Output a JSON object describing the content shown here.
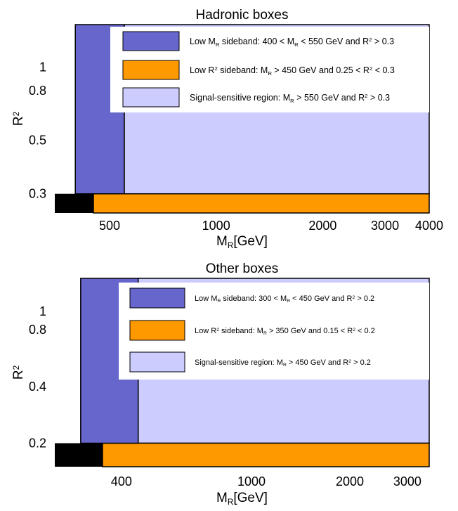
{
  "chart_data": [
    {
      "type": "area",
      "title": "Hadronic boxes",
      "xlabel": "M_R[GeV]",
      "ylabel": "R^2",
      "xscale": "log",
      "yscale": "log",
      "xlim": [
        350,
        4000
      ],
      "ylim": [
        0.25,
        1.5
      ],
      "xticks": [
        500,
        1000,
        2000,
        3000,
        4000
      ],
      "xtick_labels": [
        "500",
        "1000",
        "2000",
        "3000",
        "4000"
      ],
      "yticks": [
        0.3,
        0.5,
        0.8,
        1
      ],
      "ytick_labels": [
        "0.3",
        "0.5",
        "0.8",
        "1"
      ],
      "legend_position": "top-right",
      "colors": {
        "low_mr_sideband": "#6666cc",
        "low_r2_sideband": "#ff9900",
        "signal_region": "#ccccff",
        "excluded": "#000000"
      },
      "regions": [
        {
          "key": "low_mr_sideband",
          "name": "Low M_R sideband: 400 < M_R < 550 GeV and R^2 > 0.3",
          "mr": [
            400,
            550
          ],
          "r2": [
            0.3,
            1.5
          ],
          "color": "#6666cc"
        },
        {
          "key": "low_r2_sideband",
          "name": "Low R^2 sideband: M_R > 450 GeV and 0.25 < R^2 < 0.3",
          "mr": [
            450,
            4000
          ],
          "r2": [
            0.25,
            0.3
          ],
          "color": "#ff9900"
        },
        {
          "key": "signal_region",
          "name": "Signal-sensitive region: M_R > 550 GeV and R^2 > 0.3",
          "mr": [
            550,
            4000
          ],
          "r2": [
            0.3,
            1.5
          ],
          "color": "#ccccff"
        },
        {
          "key": "excluded",
          "name": "",
          "mr": [
            350,
            450
          ],
          "r2": [
            0.25,
            0.3
          ],
          "color": "#000000"
        }
      ]
    },
    {
      "type": "area",
      "title": "Other boxes",
      "xlabel": "M_R[GeV]",
      "ylabel": "R^2",
      "xscale": "log",
      "yscale": "log",
      "xlim": [
        250,
        3500
      ],
      "ylim": [
        0.15,
        1.5
      ],
      "xticks": [
        400,
        1000,
        2000,
        3000
      ],
      "xtick_labels": [
        "400",
        "1000",
        "2000",
        "3000"
      ],
      "yticks": [
        0.2,
        0.4,
        0.8,
        1
      ],
      "ytick_labels": [
        "0.2",
        "0.4",
        "0.8",
        "1"
      ],
      "legend_position": "top-right",
      "colors": {
        "low_mr_sideband": "#6666cc",
        "low_r2_sideband": "#ff9900",
        "signal_region": "#ccccff",
        "excluded": "#000000"
      },
      "regions": [
        {
          "key": "low_mr_sideband",
          "name": "Low M_R sideband: 300 < M_R < 450 GeV and R^2 > 0.2",
          "mr": [
            300,
            450
          ],
          "r2": [
            0.2,
            1.5
          ],
          "color": "#6666cc"
        },
        {
          "key": "low_r2_sideband",
          "name": "Low R^2 sideband: M_R > 350 GeV and 0.15 < R^2 < 0.2",
          "mr": [
            350,
            3500
          ],
          "r2": [
            0.15,
            0.2
          ],
          "color": "#ff9900"
        },
        {
          "key": "signal_region",
          "name": "Signal-sensitive region: M_R > 450 GeV and R^2 > 0.2",
          "mr": [
            450,
            3500
          ],
          "r2": [
            0.2,
            1.5
          ],
          "color": "#ccccff"
        },
        {
          "key": "excluded",
          "name": "",
          "mr": [
            250,
            350
          ],
          "r2": [
            0.15,
            0.2
          ],
          "color": "#000000"
        }
      ]
    }
  ],
  "legends": [
    [
      {
        "key": "low_mr_sideband",
        "parts": [
          [
            "Low M",
            ""
          ],
          [
            "R",
            "sub"
          ],
          [
            " sideband: 400 < M",
            ""
          ],
          [
            "R",
            "sub"
          ],
          [
            " < 550 GeV and R",
            ""
          ],
          [
            "2",
            "sup"
          ],
          [
            " > 0.3",
            ""
          ]
        ]
      },
      {
        "key": "low_r2_sideband",
        "parts": [
          [
            "Low R",
            ""
          ],
          [
            "2",
            "sup"
          ],
          [
            " sideband: M",
            ""
          ],
          [
            "R",
            "sub"
          ],
          [
            " > 450 GeV and 0.25 < R",
            ""
          ],
          [
            "2",
            "sup"
          ],
          [
            " < 0.3",
            ""
          ]
        ]
      },
      {
        "key": "signal_region",
        "parts": [
          [
            "Signal-sensitive region: M",
            ""
          ],
          [
            "R",
            "sub"
          ],
          [
            " > 550 GeV and R",
            ""
          ],
          [
            "2",
            "sup"
          ],
          [
            " > 0.3",
            ""
          ]
        ]
      }
    ],
    [
      {
        "key": "low_mr_sideband",
        "parts": [
          [
            "Low M",
            ""
          ],
          [
            "R",
            "sub"
          ],
          [
            " sideband: 300 < M",
            ""
          ],
          [
            "R",
            "sub"
          ],
          [
            " < 450 GeV and R",
            ""
          ],
          [
            "2",
            "sup"
          ],
          [
            " > 0.2",
            ""
          ]
        ]
      },
      {
        "key": "low_r2_sideband",
        "parts": [
          [
            "Low R",
            ""
          ],
          [
            "2",
            "sup"
          ],
          [
            " sideband: M",
            ""
          ],
          [
            "R",
            "sub"
          ],
          [
            " > 350 GeV and 0.15 < R",
            ""
          ],
          [
            "2",
            "sup"
          ],
          [
            " < 0.2",
            ""
          ]
        ]
      },
      {
        "key": "signal_region",
        "parts": [
          [
            "Signal-sensitive region: M",
            ""
          ],
          [
            "R",
            "sub"
          ],
          [
            " > 450 GeV and R",
            ""
          ],
          [
            "2",
            "sup"
          ],
          [
            " > 0.2",
            ""
          ]
        ]
      }
    ]
  ],
  "axis_text": {
    "xlabel_parts": [
      [
        "M",
        ""
      ],
      [
        "R",
        "sub"
      ],
      [
        "[GeV]",
        ""
      ]
    ],
    "ylabel_parts": [
      [
        "R",
        ""
      ],
      [
        "2",
        "sup"
      ]
    ]
  }
}
